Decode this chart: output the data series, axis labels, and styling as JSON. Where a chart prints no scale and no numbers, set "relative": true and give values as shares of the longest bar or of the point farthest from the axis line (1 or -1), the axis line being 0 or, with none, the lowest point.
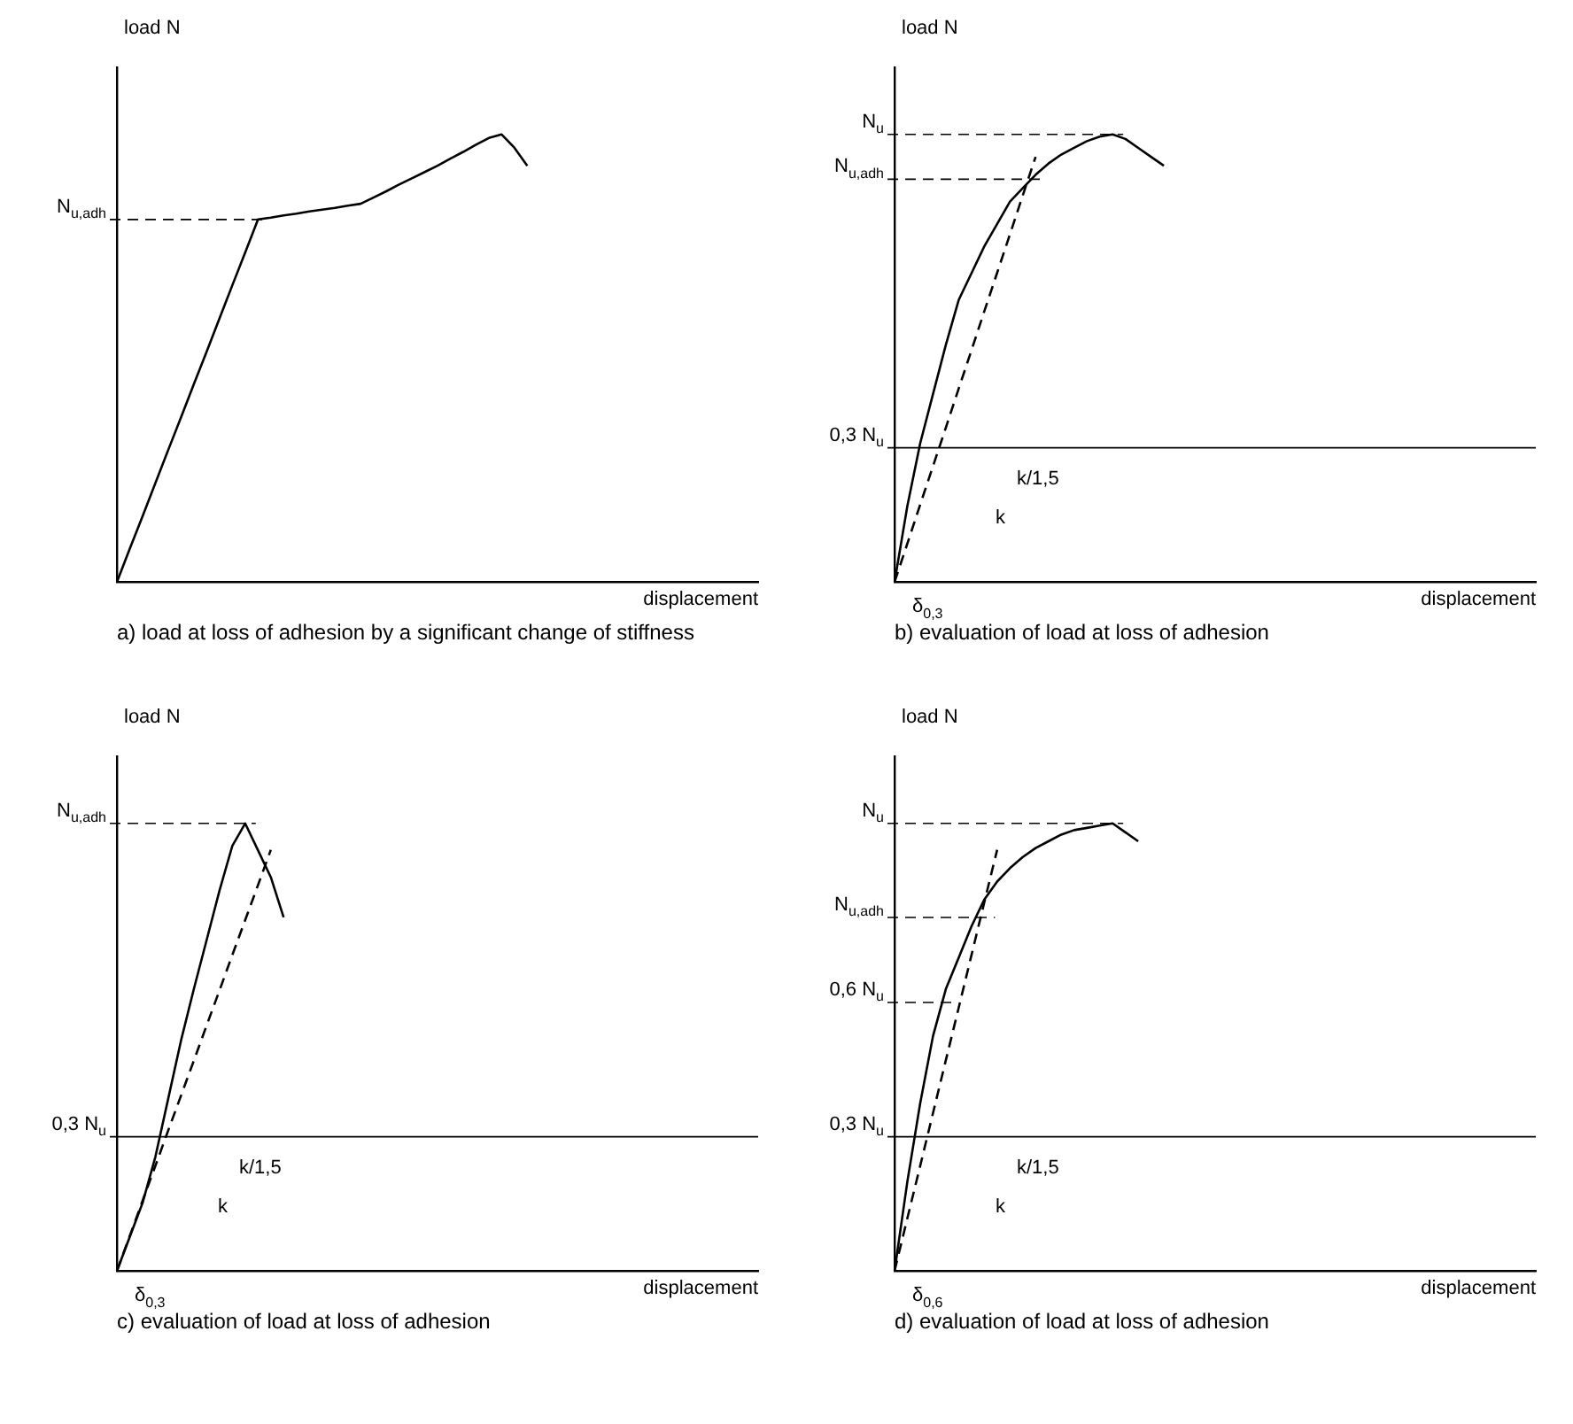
{
  "chart_data": [
    {
      "type": "line",
      "title": "a) load at loss of adhesion by a significant change of stiffness",
      "xlabel": "displacement",
      "ylabel": "load N",
      "relative": true,
      "marker": "none",
      "legend": false,
      "grid": false,
      "categories": [
        null,
        null,
        null,
        null,
        null,
        null,
        null,
        null,
        null,
        null,
        null,
        null,
        null,
        null,
        null,
        null,
        null,
        null,
        null,
        null,
        null,
        null,
        null,
        null,
        null,
        null,
        null,
        null,
        null,
        null,
        null,
        null,
        null,
        null,
        null,
        null,
        null,
        null,
        null,
        null,
        null,
        null,
        null,
        null,
        null,
        null,
        null,
        null,
        null,
        null,
        null
      ],
      "series": [
        {
          "color": "#000000",
          "line_style": "solid",
          "values": [
            0,
            0.074,
            0.147,
            0.221,
            0.295,
            0.368,
            0.442,
            0.515,
            0.589,
            0.663,
            0.736,
            0.81,
            0.814,
            0.819,
            0.823,
            0.828,
            0.832,
            0.836,
            0.841,
            0.845,
            0.859,
            0.873,
            0.888,
            0.902,
            0.916,
            0.93,
            0.946,
            0.961,
            0.977,
            0.992,
            1.0,
            0.97,
            0.93,
            null,
            null,
            null,
            null,
            null,
            null,
            null,
            null,
            null,
            null,
            null,
            null,
            null,
            null,
            null,
            null,
            null,
            null
          ]
        }
      ],
      "ref_lines": [
        {
          "axis": "y",
          "value": 0.81,
          "label": "N$_{u,adh}$",
          "line_style": "dashed"
        }
      ]
    },
    {
      "type": "line",
      "title": "b) evaluation of load at loss of adhesion",
      "xlabel": "displacement",
      "ylabel": "load N",
      "relative": true,
      "marker": "none",
      "legend": false,
      "grid": false,
      "categories": [
        null,
        null,
        null,
        null,
        null,
        null,
        null,
        null,
        null,
        null,
        null,
        null,
        null,
        null,
        null,
        null,
        null,
        null,
        null,
        null,
        null,
        null,
        null,
        null,
        null,
        null,
        null,
        null,
        null,
        null,
        null,
        null,
        null,
        null,
        null,
        null,
        null,
        null,
        null,
        null,
        null,
        null,
        null,
        null,
        null,
        null,
        null,
        null,
        null,
        null,
        null
      ],
      "series": [
        {
          "color": "#000000",
          "line_style": "solid",
          "values": [
            0,
            0.17,
            0.31,
            0.42,
            0.53,
            0.63,
            0.69,
            0.75,
            0.8,
            0.85,
            0.88,
            0.91,
            0.935,
            0.955,
            0.97,
            0.985,
            0.995,
            1.0,
            0.99,
            0.97,
            0.95,
            0.93,
            null,
            null,
            null,
            null,
            null,
            null,
            null,
            null,
            null,
            null,
            null,
            null,
            null,
            null,
            null,
            null,
            null,
            null,
            null,
            null,
            null,
            null,
            null,
            null,
            null,
            null,
            null,
            null,
            null
          ]
        },
        {
          "color": "#000000",
          "line_style": "dashed",
          "values": [
            0,
            0.086,
            0.173,
            0.259,
            0.345,
            0.432,
            0.518,
            0.605,
            0.691,
            0.777,
            0.864,
            0.95,
            null,
            null,
            null,
            null,
            null,
            null,
            null,
            null,
            null,
            null,
            null,
            null,
            null,
            null,
            null,
            null,
            null,
            null,
            null,
            null,
            null,
            null,
            null,
            null,
            null,
            null,
            null,
            null,
            null,
            null,
            null,
            null,
            null,
            null,
            null,
            null,
            null,
            null,
            null
          ]
        }
      ],
      "ref_lines": [
        {
          "axis": "y",
          "value": 1.0,
          "label": "N$_{u}$",
          "line_style": "dashed"
        },
        {
          "axis": "y",
          "value": 0.9,
          "label": "N$_{u,adh}$",
          "line_style": "dashed"
        },
        {
          "axis": "y",
          "value": 0.3,
          "label": "0,3 N$_{u}$",
          "line_style": "solid"
        }
      ],
      "annotations": [
        "δ$_{0,3}$",
        "k",
        "k/1,5"
      ]
    },
    {
      "type": "line",
      "title": "c) evaluation of load at loss of adhesion",
      "xlabel": "displacement",
      "ylabel": "load N",
      "relative": true,
      "marker": "none",
      "legend": false,
      "grid": false,
      "categories": [
        null,
        null,
        null,
        null,
        null,
        null,
        null,
        null,
        null,
        null,
        null,
        null,
        null,
        null,
        null,
        null,
        null,
        null,
        null,
        null,
        null,
        null,
        null,
        null,
        null,
        null,
        null,
        null,
        null,
        null,
        null,
        null,
        null,
        null,
        null,
        null,
        null,
        null,
        null,
        null,
        null,
        null,
        null,
        null,
        null,
        null,
        null,
        null,
        null,
        null,
        null
      ],
      "series": [
        {
          "color": "#000000",
          "line_style": "solid",
          "values": [
            0,
            0.076,
            0.152,
            0.255,
            0.385,
            0.515,
            0.63,
            0.74,
            0.85,
            0.95,
            1.0,
            0.94,
            0.88,
            0.79,
            null,
            null,
            null,
            null,
            null,
            null,
            null,
            null,
            null,
            null,
            null,
            null,
            null,
            null,
            null,
            null,
            null,
            null,
            null,
            null,
            null,
            null,
            null,
            null,
            null,
            null,
            null,
            null,
            null,
            null,
            null,
            null,
            null,
            null,
            null,
            null,
            null
          ]
        },
        {
          "color": "#000000",
          "line_style": "dashed",
          "values": [
            0,
            0.078,
            0.157,
            0.235,
            0.314,
            0.392,
            0.47,
            0.549,
            0.627,
            0.706,
            0.784,
            0.862,
            0.941,
            null,
            null,
            null,
            null,
            null,
            null,
            null,
            null,
            null,
            null,
            null,
            null,
            null,
            null,
            null,
            null,
            null,
            null,
            null,
            null,
            null,
            null,
            null,
            null,
            null,
            null,
            null,
            null,
            null,
            null,
            null,
            null,
            null,
            null,
            null,
            null,
            null,
            null
          ]
        }
      ],
      "ref_lines": [
        {
          "axis": "y",
          "value": 1.0,
          "label": "N$_{u,adh}$",
          "line_style": "dashed"
        },
        {
          "axis": "y",
          "value": 0.3,
          "label": "0,3 N$_{u}$",
          "line_style": "solid"
        }
      ],
      "annotations": [
        "δ$_{0,3}$",
        "k",
        "k/1,5"
      ]
    },
    {
      "type": "line",
      "title": "d) evaluation of load at loss of adhesion",
      "xlabel": "displacement",
      "ylabel": "load N",
      "relative": true,
      "marker": "none",
      "legend": false,
      "grid": false,
      "categories": [
        null,
        null,
        null,
        null,
        null,
        null,
        null,
        null,
        null,
        null,
        null,
        null,
        null,
        null,
        null,
        null,
        null,
        null,
        null,
        null,
        null,
        null,
        null,
        null,
        null,
        null,
        null,
        null,
        null,
        null,
        null,
        null,
        null,
        null,
        null,
        null,
        null,
        null,
        null,
        null,
        null,
        null,
        null,
        null,
        null,
        null,
        null,
        null,
        null,
        null,
        null
      ],
      "series": [
        {
          "color": "#000000",
          "line_style": "solid",
          "values": [
            0,
            0.2,
            0.375,
            0.525,
            0.63,
            0.7,
            0.77,
            0.83,
            0.87,
            0.9,
            0.925,
            0.945,
            0.96,
            0.975,
            0.985,
            0.99,
            0.995,
            1.0,
            0.98,
            0.96,
            null,
            null,
            null,
            null,
            null,
            null,
            null,
            null,
            null,
            null,
            null,
            null,
            null,
            null,
            null,
            null,
            null,
            null,
            null,
            null,
            null,
            null,
            null,
            null,
            null,
            null,
            null,
            null,
            null,
            null,
            null
          ]
        },
        {
          "color": "#000000",
          "line_style": "dashed",
          "values": [
            0,
            0.118,
            0.235,
            0.353,
            0.471,
            0.588,
            0.706,
            0.824,
            0.941,
            null,
            null,
            null,
            null,
            null,
            null,
            null,
            null,
            null,
            null,
            null,
            null,
            null,
            null,
            null,
            null,
            null,
            null,
            null,
            null,
            null,
            null,
            null,
            null,
            null,
            null,
            null,
            null,
            null,
            null,
            null,
            null,
            null,
            null,
            null,
            null,
            null,
            null,
            null,
            null,
            null,
            null
          ]
        }
      ],
      "ref_lines": [
        {
          "axis": "y",
          "value": 1.0,
          "label": "N$_{u}$",
          "line_style": "dashed"
        },
        {
          "axis": "y",
          "value": 0.79,
          "label": "N$_{u,adh}$",
          "line_style": "dashed"
        },
        {
          "axis": "y",
          "value": 0.6,
          "label": "0,6 N$_{u}$",
          "line_style": "dashed"
        },
        {
          "axis": "y",
          "value": 0.3,
          "label": "0,3 N$_{u}$",
          "line_style": "solid"
        }
      ],
      "annotations": [
        "δ$_{0,6}$",
        "k",
        "k/1,5"
      ]
    }
  ]
}
